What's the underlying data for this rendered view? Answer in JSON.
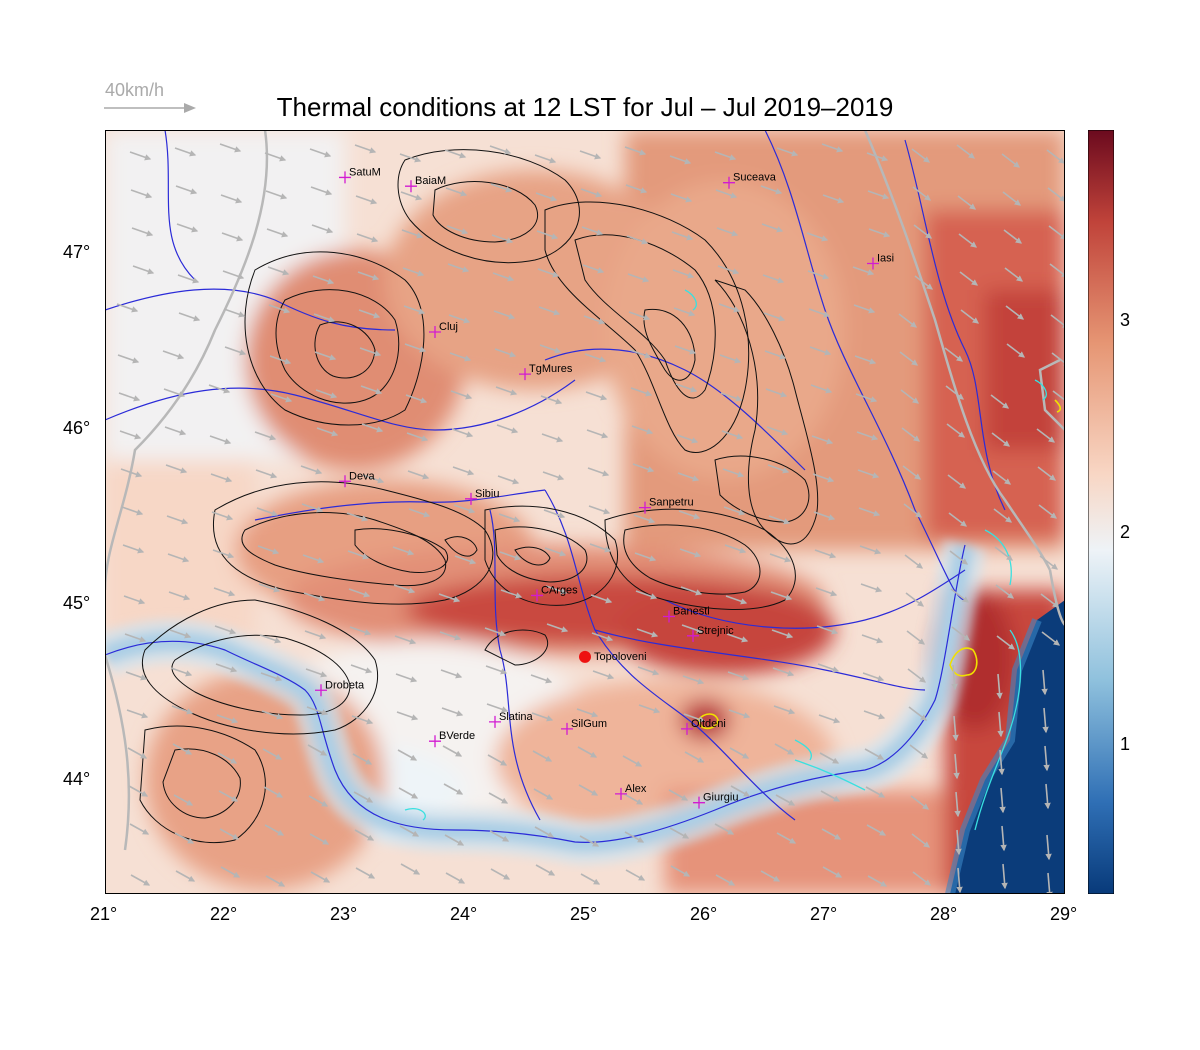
{
  "title": "Thermal conditions at 12 LST for Jul – Jul  2019–2019",
  "wind_legend": {
    "label": "40km/h"
  },
  "axes": {
    "x_ticks": [
      "21°",
      "22°",
      "23°",
      "24°",
      "25°",
      "26°",
      "27°",
      "28°",
      "29°"
    ],
    "y_ticks": [
      "44°",
      "45°",
      "46°",
      "47°"
    ],
    "lon_range": [
      21,
      29
    ],
    "lat_range": [
      43.35,
      47.7
    ]
  },
  "colorbar": {
    "ticks": [
      "1",
      "2",
      "3"
    ],
    "range": [
      0.3,
      3.9
    ],
    "colors": [
      "#083a7a",
      "#2f6fb5",
      "#8fc1dd",
      "#eef3f7",
      "#f8d6c4",
      "#e69674",
      "#c0433a",
      "#6b0a1e"
    ]
  },
  "cities": [
    {
      "name": "SatuM",
      "lon": 23.0,
      "lat": 47.43
    },
    {
      "name": "BaiaM",
      "lon": 23.55,
      "lat": 47.38
    },
    {
      "name": "Suceava",
      "lon": 26.2,
      "lat": 47.4
    },
    {
      "name": "Iasi",
      "lon": 27.4,
      "lat": 46.94
    },
    {
      "name": "Cluj",
      "lon": 23.75,
      "lat": 46.55
    },
    {
      "name": "TgMures",
      "lon": 24.5,
      "lat": 46.31
    },
    {
      "name": "Deva",
      "lon": 23.0,
      "lat": 45.7
    },
    {
      "name": "Sibiu",
      "lon": 24.05,
      "lat": 45.6
    },
    {
      "name": "Sanpetru",
      "lon": 25.5,
      "lat": 45.55
    },
    {
      "name": "CArges",
      "lon": 24.6,
      "lat": 45.05
    },
    {
      "name": "Banesti",
      "lon": 25.7,
      "lat": 44.93
    },
    {
      "name": "Strejnic",
      "lon": 25.9,
      "lat": 44.82
    },
    {
      "name": "Drobeta",
      "lon": 22.8,
      "lat": 44.51
    },
    {
      "name": "Slatina",
      "lon": 24.25,
      "lat": 44.33
    },
    {
      "name": "SilGum",
      "lon": 24.85,
      "lat": 44.29
    },
    {
      "name": "Oltdeni",
      "lon": 25.85,
      "lat": 44.29
    },
    {
      "name": "BVerde",
      "lon": 23.75,
      "lat": 44.22
    },
    {
      "name": "Alex",
      "lon": 25.3,
      "lat": 43.92
    },
    {
      "name": "Giurgiu",
      "lon": 25.95,
      "lat": 43.87
    }
  ],
  "highlight": {
    "name": "Topoloveni",
    "lon": 25.0,
    "lat": 44.7,
    "color": "#ee1111"
  }
}
